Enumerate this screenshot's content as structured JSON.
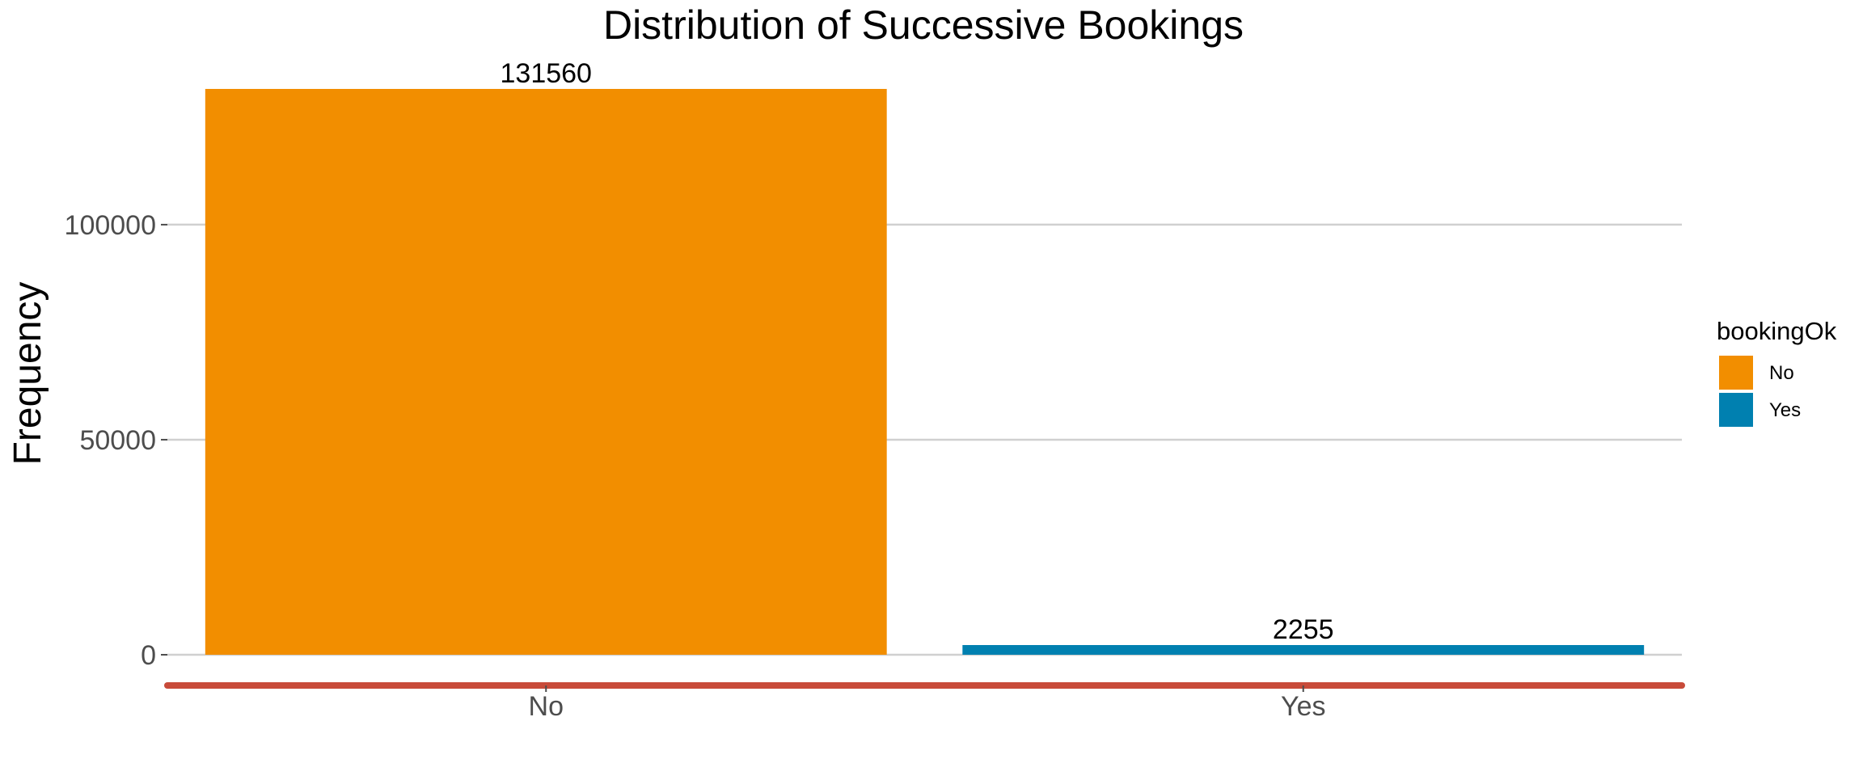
{
  "chart_data": {
    "type": "bar",
    "title": "Distribution of Successive Bookings",
    "xlabel": "",
    "ylabel": "Frequency",
    "categories": [
      "No",
      "Yes"
    ],
    "values": [
      131560,
      2255
    ],
    "data_labels": [
      "131560",
      "2255"
    ],
    "colors": [
      "#F28E00",
      "#0080B0"
    ],
    "ylim": [
      0,
      131560
    ],
    "yticks": [
      0,
      50000,
      100000
    ],
    "ytick_labels": [
      "0",
      "50000",
      "100000"
    ],
    "grid": "horizontal major",
    "axis_line_color": "#C84B3A",
    "legend": {
      "title": "bookingOk",
      "placement": "right",
      "items": [
        {
          "label": "No",
          "color": "#F28E00"
        },
        {
          "label": "Yes",
          "color": "#0080B0"
        }
      ]
    }
  }
}
